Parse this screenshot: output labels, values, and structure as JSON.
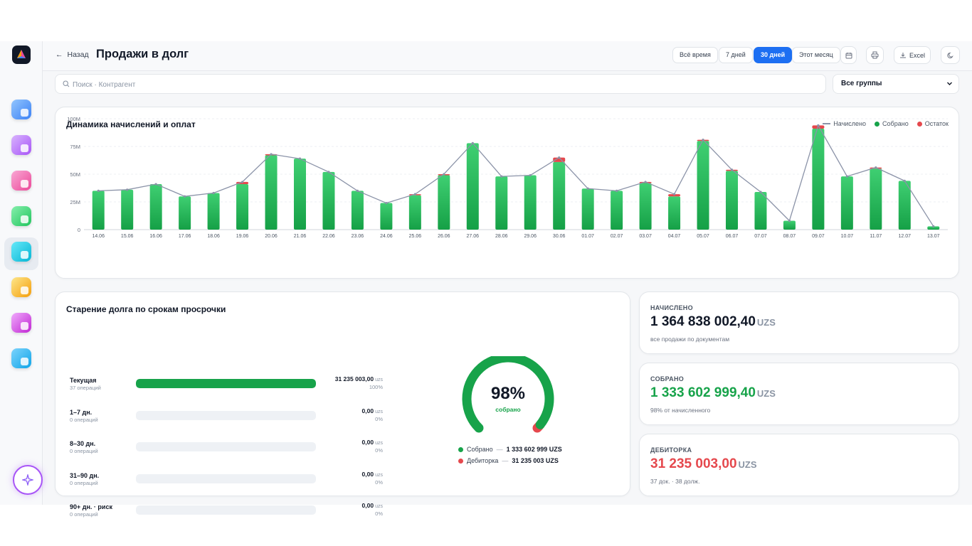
{
  "header": {
    "back_label": "Назад",
    "title": "Продажи в долг",
    "periods": [
      "Всё время",
      "7 дней",
      "30 дней",
      "Этот месяц"
    ],
    "active_period": "30 дней",
    "excel_label": "Excel"
  },
  "search": {
    "placeholder": "Поиск · Контрагент",
    "value": ""
  },
  "group_select": {
    "value": "Все группы"
  },
  "sidebar": {
    "icons": [
      "dashboard-icon",
      "analytics-icon",
      "calculator-icon",
      "exchange-icon",
      "chart-icon",
      "box-icon",
      "sparkle-icon",
      "list-icon"
    ],
    "active_index": 4
  },
  "colors": {
    "accent": "#1d6ff2",
    "collected": "#17a34a",
    "remaining": "#e5484d",
    "accrued_line": "#8b93a8"
  },
  "chart_title": "Динамика начислений и оплат",
  "legend": {
    "accrued": "Начислено",
    "collected": "Собрано",
    "remaining": "Остаток"
  },
  "chart_data": {
    "type": "bar",
    "title": "Динамика начислений и оплат",
    "categories": [
      "14.06",
      "15.06",
      "16.06",
      "17.06",
      "18.06",
      "19.06",
      "20.06",
      "21.06",
      "22.06",
      "23.06",
      "24.06",
      "25.06",
      "26.06",
      "27.06",
      "28.06",
      "29.06",
      "30.06",
      "01.07",
      "02.07",
      "03.07",
      "04.07",
      "05.07",
      "06.07",
      "07.07",
      "08.07",
      "09.07",
      "10.07",
      "11.07",
      "12.07",
      "13.07"
    ],
    "series": [
      {
        "name": "Собрано",
        "type": "bar",
        "values": [
          35,
          36,
          41,
          30,
          33,
          41,
          67,
          64,
          52,
          35,
          24,
          31,
          49,
          78,
          48,
          49,
          61,
          37,
          35,
          42,
          30,
          80,
          53,
          34,
          8,
          91,
          48,
          55,
          44,
          3
        ]
      },
      {
        "name": "Остаток",
        "type": "bar-stacked",
        "values": [
          0,
          0,
          0,
          0,
          0,
          2,
          1,
          0,
          0,
          0,
          0,
          1,
          1,
          0,
          0,
          0,
          4,
          0,
          0,
          1,
          2,
          1,
          1,
          0,
          0,
          3,
          0,
          1,
          0,
          0
        ]
      },
      {
        "name": "Начислено",
        "type": "line",
        "values": [
          35,
          36,
          41,
          30,
          33,
          43,
          68,
          64,
          52,
          35,
          24,
          32,
          50,
          78,
          48,
          49,
          65,
          37,
          35,
          43,
          32,
          81,
          54,
          34,
          8,
          94,
          48,
          56,
          44,
          3
        ]
      }
    ],
    "y_ticks": [
      "0",
      "25M",
      "50M",
      "75M",
      "100M"
    ],
    "ylim": [
      0,
      100
    ],
    "grid": true,
    "legend_position": "top-right"
  },
  "aging": {
    "title": "Старение долга по срокам просрочки",
    "currency": "uzs",
    "rows": [
      {
        "name": "Текущая",
        "ops": "37 операций",
        "amount": "31 235 003,00",
        "pct": "100%",
        "fill": 1.0
      },
      {
        "name": "1–7 дн.",
        "ops": "0 операций",
        "amount": "0,00",
        "pct": "0%",
        "fill": 0
      },
      {
        "name": "8–30 дн.",
        "ops": "0 операций",
        "amount": "0,00",
        "pct": "0%",
        "fill": 0
      },
      {
        "name": "31–90 дн.",
        "ops": "0 операций",
        "amount": "0,00",
        "pct": "0%",
        "fill": 0
      },
      {
        "name": "90+ дн. · риск",
        "ops": "0 операций",
        "amount": "0,00",
        "pct": "0%",
        "fill": 0
      }
    ]
  },
  "gauge": {
    "value": "98%",
    "fraction": 0.977,
    "label": "собрано",
    "collected_label": "Собрано",
    "collected_amount": "1 333 602 999 UZS",
    "debt_label": "Дебиторка",
    "debt_amount": "31 235 003 UZS",
    "separator": "—"
  },
  "kpis": [
    {
      "label": "НАЧИСЛЕНО",
      "value": "1 364 838 002,40",
      "currency": "UZS",
      "sub": "все продажи по документам",
      "color": "#111827"
    },
    {
      "label": "СОБРАНО",
      "value": "1 333 602 999,40",
      "currency": "UZS",
      "sub": "98% от начисленного",
      "color": "#17a34a"
    },
    {
      "label": "ДЕБИТОРКА",
      "value": "31 235 003,00",
      "currency": "UZS",
      "sub": "37 док. · 38 долж.",
      "color": "#e5484d"
    }
  ]
}
